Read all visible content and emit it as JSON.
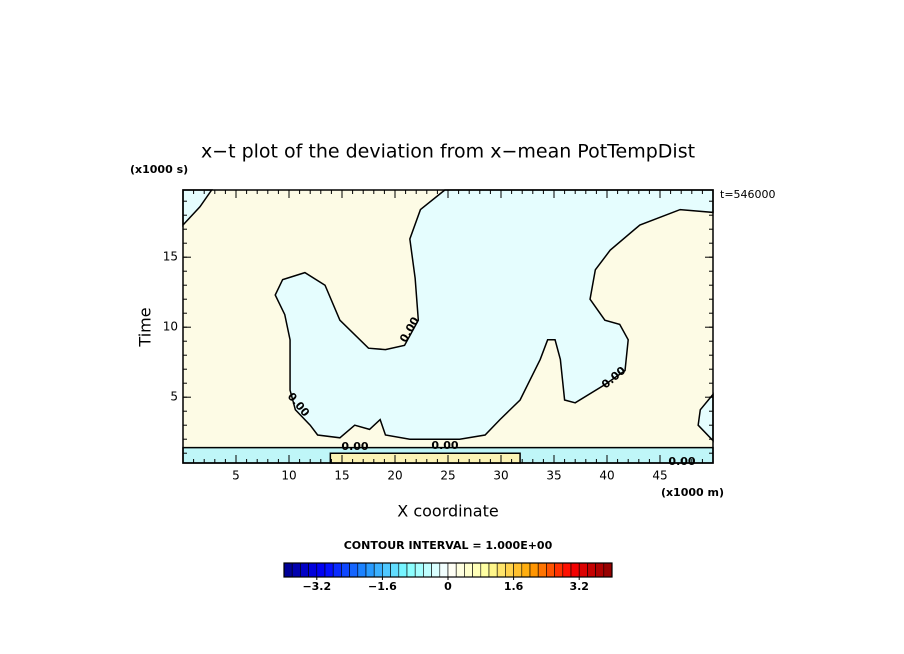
{
  "chart_data": {
    "type": "contour",
    "title": "x−t plot of the deviation from x−mean PotTempDist",
    "y_unit": "(x1000 s)",
    "x_unit": "(x1000 m)",
    "time_label": "t=546000",
    "xlabel": "X coordinate",
    "ylabel": "Time",
    "xlim": [
      0,
      50
    ],
    "ylim": [
      0.3,
      19.8
    ],
    "xticks": [
      5,
      10,
      15,
      20,
      25,
      30,
      35,
      40,
      45
    ],
    "yticks": [
      5,
      10,
      15
    ],
    "minor_tick_step": 1,
    "background_color": "#fdfbe5",
    "regions": [
      {
        "color": "#e5fdfe",
        "x": [
          24.7,
          22.4,
          21.4,
          21.9,
          22.2,
          20.9,
          19.1,
          17.5,
          14.8,
          13.4,
          11.5,
          9.4,
          8.7,
          9.6,
          10.1,
          10.1,
          10.6,
          12.0,
          12.7,
          14.8,
          16.2,
          17.6,
          18.6,
          19.1,
          21.4,
          26.1,
          28.5,
          29.9,
          31.8,
          33.7,
          34.4,
          35.1,
          35.6,
          36.0,
          37.0,
          39.8,
          41.7,
          42.0,
          41.2,
          39.8,
          38.4,
          38.9,
          40.3,
          43.1,
          46.9,
          50,
          50
        ],
        "y": [
          19.8,
          18.4,
          16.3,
          13.5,
          10.5,
          8.7,
          8.4,
          8.5,
          10.5,
          13.0,
          13.9,
          13.4,
          12.3,
          10.9,
          9.1,
          5.5,
          4.1,
          3.0,
          2.3,
          2.1,
          3.0,
          2.7,
          3.4,
          2.3,
          2.0,
          2.0,
          2.3,
          3.4,
          4.8,
          7.7,
          9.1,
          9.1,
          7.7,
          4.8,
          4.6,
          5.9,
          6.9,
          9.1,
          10.2,
          10.5,
          12.0,
          14.1,
          15.5,
          17.3,
          18.4,
          18.2,
          19.8
        ]
      },
      {
        "color": "#e5fdfe",
        "x": [
          0,
          1.6,
          2.7,
          0
        ],
        "y": [
          17.3,
          18.6,
          19.8,
          19.8
        ]
      },
      {
        "color": "#e5fdfe",
        "x": [
          50,
          48.8,
          48.6,
          50
        ],
        "y": [
          5.2,
          4.1,
          3.0,
          1.9
        ]
      },
      {
        "color": "#bff6f8",
        "x": [
          0,
          50,
          50,
          0
        ],
        "y": [
          0.3,
          0.3,
          1.4,
          1.4
        ]
      },
      {
        "color": "#fbf3b5",
        "x": [
          13.9,
          31.8,
          31.8,
          13.9
        ],
        "y": [
          0.3,
          0.3,
          1.0,
          1.0
        ]
      }
    ],
    "contour_labels": [
      "0.00",
      "0.00",
      "0.00",
      "0.00",
      "0.00",
      "0.00"
    ],
    "colorbar": {
      "title": "CONTOUR INTERVAL = 1.000E+00",
      "range": [
        -4,
        4
      ],
      "step": 0.2,
      "colors": [
        "#00008b",
        "#0000ff",
        "#1e90ff",
        "#7fffff",
        "#ffffff",
        "#ffff99",
        "#ffa500",
        "#ff0000",
        "#8b0000"
      ],
      "ticks": [
        {
          "value": -3.2,
          "label": "−3.2"
        },
        {
          "value": -1.6,
          "label": "−1.6"
        },
        0,
        1.6,
        3.2
      ]
    }
  }
}
